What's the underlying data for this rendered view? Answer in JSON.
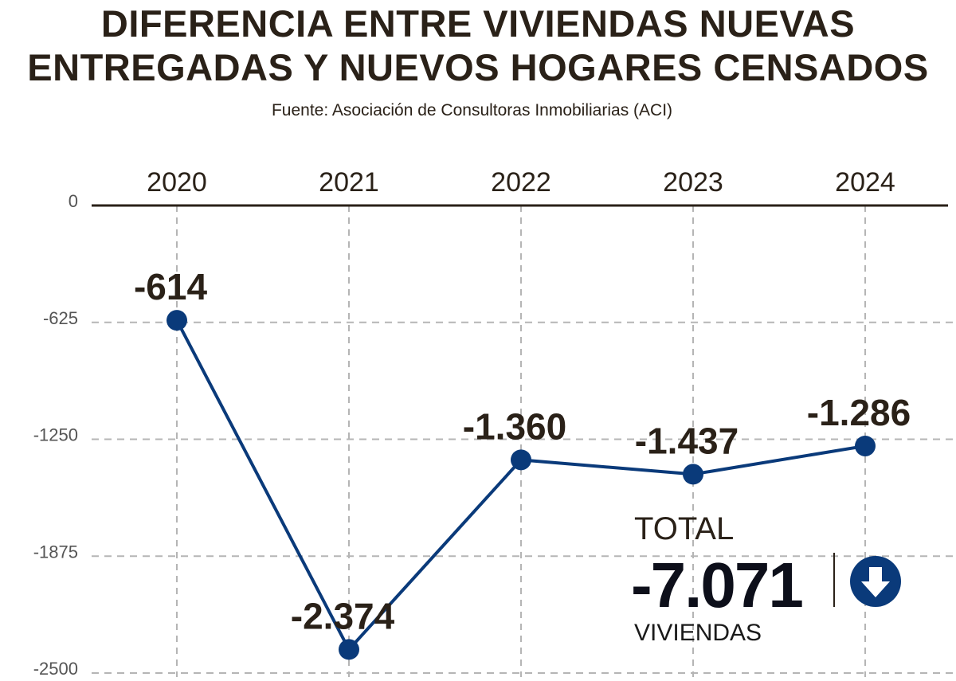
{
  "title_line1": "DIFERENCIA ENTRE VIVIENDAS NUEVAS",
  "title_line2": "ENTREGADAS Y NUEVOS HOGARES CENSADOS",
  "source": "Fuente: Asociación de Consultoras Inmobiliarias (ACI)",
  "chart_data": {
    "type": "line",
    "title": "DIFERENCIA ENTRE VIVIENDAS NUEVAS ENTREGADAS Y NUEVOS HOGARES CENSADOS",
    "categories": [
      "2020",
      "2021",
      "2022",
      "2023",
      "2024"
    ],
    "values": [
      -614,
      -2374,
      -1360,
      -1437,
      -1286
    ],
    "data_labels": [
      "-614",
      "-2.374",
      "-1.360",
      "-1.437",
      "-1.286"
    ],
    "yticks": [
      0,
      -625,
      -1250,
      -1875,
      -2500
    ],
    "ytick_labels": [
      "0",
      "-625",
      "-1250",
      "-1875",
      "-2500"
    ],
    "ylim": [
      -2500,
      0
    ],
    "xaxis_position": "top",
    "grid": true,
    "line_color": "#0a3a7a"
  },
  "total": {
    "label": "TOTAL",
    "value": "-7.071",
    "unit": "VIVIENDAS",
    "icon": "arrow-down-circle-icon",
    "icon_color": "#0a3a7a"
  }
}
